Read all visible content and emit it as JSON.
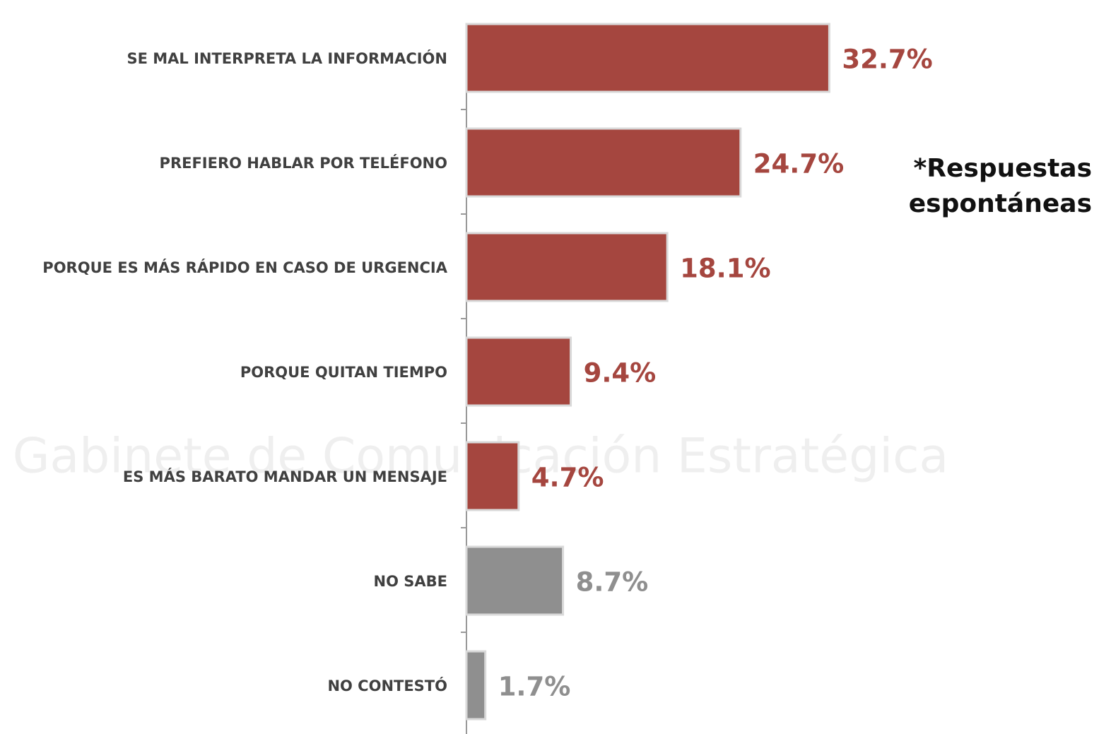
{
  "chart_data": {
    "type": "bar",
    "orientation": "horizontal",
    "categories": [
      "SE MAL INTERPRETA LA INFORMACIÓN",
      "PREFIERO HABLAR POR TELÉFONO",
      "PORQUE ES MÁS RÁPIDO EN CASO DE URGENCIA",
      "PORQUE QUITAN TIEMPO",
      "ES MÁS BARATO MANDAR UN MENSAJE",
      "NO SABE",
      "NO CONTESTÓ"
    ],
    "values": [
      32.7,
      24.7,
      18.1,
      9.4,
      4.7,
      8.7,
      1.7
    ],
    "value_labels": [
      "32.7%",
      "24.7%",
      "18.1%",
      "9.4%",
      "4.7%",
      "8.7%",
      "1.7%"
    ],
    "colors": [
      "#a5463f",
      "#a5463f",
      "#a5463f",
      "#a5463f",
      "#a5463f",
      "#8f8f8f",
      "#8f8f8f"
    ],
    "xlim": [
      0,
      40
    ],
    "annotation": [
      "*Respuestas",
      "espontáneas"
    ],
    "watermark": "Gabinete de Comunicación Estratégica"
  }
}
